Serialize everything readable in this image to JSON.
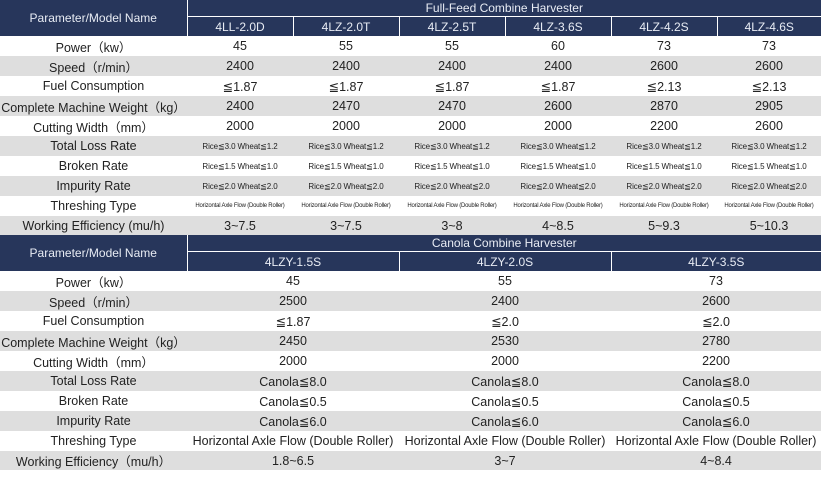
{
  "full_feed": {
    "param_header": "Parameter/Model Name",
    "group_title": "Full-Feed Combine Harvester",
    "models": [
      "4LL-2.0D",
      "4LZ-2.0T",
      "4LZ-2.5T",
      "4LZ-3.6S",
      "4LZ-4.2S",
      "4LZ-4.6S"
    ],
    "rows": [
      {
        "label": "Power（kw）",
        "values": [
          "45",
          "55",
          "55",
          "60",
          "73",
          "73"
        ]
      },
      {
        "label": "Speed（r/min）",
        "values": [
          "2400",
          "2400",
          "2400",
          "2400",
          "2600",
          "2600"
        ]
      },
      {
        "label": "Fuel Consumption",
        "values": [
          "≦1.87",
          "≦1.87",
          "≦1.87",
          "≦1.87",
          "≦2.13",
          "≦2.13"
        ]
      },
      {
        "label": "Complete Machine Weight（kg）",
        "values": [
          "2400",
          "2470",
          "2470",
          "2600",
          "2870",
          "2905"
        ]
      },
      {
        "label": "Cutting Width（mm）",
        "values": [
          "2000",
          "2000",
          "2000",
          "2000",
          "2200",
          "2600"
        ]
      },
      {
        "label": "Total Loss Rate",
        "values": [
          "Rice≦3.0 Wheat≦1.2",
          "Rice≦3.0 Wheat≦1.2",
          "Rice≦3.0 Wheat≦1.2",
          "Rice≦3.0 Wheat≦1.2",
          "Rice≦3.0 Wheat≦1.2",
          "Rice≦3.0 Wheat≦1.2"
        ]
      },
      {
        "label": "Broken Rate",
        "values": [
          "Rice≦1.5 Wheat≦1.0",
          "Rice≦1.5 Wheat≦1.0",
          "Rice≦1.5 Wheat≦1.0",
          "Rice≦1.5 Wheat≦1.0",
          "Rice≦1.5 Wheat≦1.0",
          "Rice≦1.5 Wheat≦1.0"
        ]
      },
      {
        "label": "Impurity Rate",
        "values": [
          "Rice≦2.0 Wheat≦2.0",
          "Rice≦2.0 Wheat≦2.0",
          "Rice≦2.0 Wheat≦2.0",
          "Rice≦2.0 Wheat≦2.0",
          "Rice≦2.0 Wheat≦2.0",
          "Rice≦2.0 Wheat≦2.0"
        ]
      },
      {
        "label": "Threshing Type",
        "values": [
          "Horizontal Axle Flow (Double Roller)",
          "Horizontal Axle Flow (Double Roller)",
          "Horizontal Axle Flow (Double Roller)",
          "Horizontal Axle Flow (Double Roller)",
          "Horizontal Axle Flow (Double Roller)",
          "Horizontal Axle Flow (Double Roller)"
        ]
      },
      {
        "label": "Working Efficiency (mu/h)",
        "values": [
          "3~7.5",
          "3~7.5",
          "3~8",
          "4~8.5",
          "5~9.3",
          "5~10.3"
        ]
      }
    ]
  },
  "canola": {
    "param_header": "Parameter/Model Name",
    "group_title": "Canola Combine Harvester",
    "models": [
      "4LZY-1.5S",
      "4LZY-2.0S",
      "4LZY-3.5S"
    ],
    "rows": [
      {
        "label": "Power（kw）",
        "values": [
          "45",
          "55",
          "73"
        ]
      },
      {
        "label": "Speed（r/min）",
        "values": [
          "2500",
          "2400",
          "2600"
        ]
      },
      {
        "label": "Fuel Consumption",
        "values": [
          "≦1.87",
          "≦2.0",
          "≦2.0"
        ]
      },
      {
        "label": "Complete Machine Weight（kg）",
        "values": [
          "2450",
          "2530",
          "2780"
        ]
      },
      {
        "label": "Cutting Width（mm）",
        "values": [
          "2000",
          "2000",
          "2200"
        ]
      },
      {
        "label": "Total Loss Rate",
        "values": [
          "Canola≦8.0",
          "Canola≦8.0",
          "Canola≦8.0"
        ]
      },
      {
        "label": "Broken Rate",
        "values": [
          "Canola≦0.5",
          "Canola≦0.5",
          "Canola≦0.5"
        ]
      },
      {
        "label": "Impurity Rate",
        "values": [
          "Canola≦6.0",
          "Canola≦6.0",
          "Canola≦6.0"
        ]
      },
      {
        "label": "Threshing Type",
        "values": [
          "Horizontal Axle Flow (Double Roller)",
          "Horizontal Axle Flow (Double Roller)",
          "Horizontal Axle Flow (Double Roller)"
        ]
      },
      {
        "label": "Working Efficiency（mu/h）",
        "values": [
          "1.8~6.5",
          "3~7",
          "4~8.4"
        ]
      }
    ]
  }
}
